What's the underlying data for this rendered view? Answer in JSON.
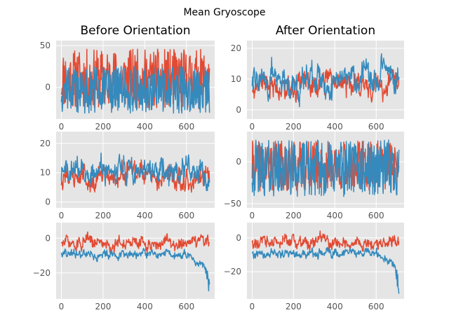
{
  "figure": {
    "suptitle": "Mean Gryoscope",
    "column_titles": [
      "Before Orientation",
      "After Orientation"
    ]
  },
  "colors": {
    "series_red": "#e24a33",
    "series_blue": "#348abd",
    "panel_background": "#e5e5e5",
    "grid": "#ffffff",
    "tick_text": "#555555"
  },
  "chart_data": [
    {
      "type": "line",
      "panel": "row1-left",
      "title": "Before Orientation",
      "x_range": [
        0,
        710
      ],
      "xlim": [
        -25,
        735
      ],
      "ylim": [
        -38,
        56
      ],
      "xticks": [
        0,
        200,
        400,
        600
      ],
      "yticks": [
        0,
        50
      ],
      "grid": true,
      "series": [
        {
          "color": "#e24a33",
          "pattern": "noise",
          "baseline": 10,
          "amp": 36,
          "floor": -30,
          "ceil": 48,
          "seed": 11
        },
        {
          "color": "#348abd",
          "pattern": "noise",
          "baseline": -3,
          "amp": 28,
          "floor": -33,
          "ceil": 52,
          "seed": 12
        }
      ]
    },
    {
      "type": "line",
      "panel": "row1-right",
      "title": "After Orientation",
      "x_range": [
        0,
        710
      ],
      "xlim": [
        -25,
        735
      ],
      "ylim": [
        -3,
        22.5
      ],
      "xticks": [
        0,
        200,
        400,
        600
      ],
      "yticks": [
        0,
        10,
        20
      ],
      "grid": true,
      "series": [
        {
          "color": "#e24a33",
          "pattern": "smooth",
          "baseline": 8.5,
          "amp": 3,
          "floor": 1,
          "ceil": 22,
          "seed": 21
        },
        {
          "color": "#348abd",
          "pattern": "smooth",
          "baseline": 10,
          "amp": 3.5,
          "floor": -2,
          "ceil": 21,
          "seed": 22
        }
      ]
    },
    {
      "type": "line",
      "panel": "row2-left",
      "x_range": [
        0,
        710
      ],
      "xlim": [
        -25,
        735
      ],
      "ylim": [
        -2,
        24
      ],
      "xticks": [
        0,
        200,
        400,
        600
      ],
      "yticks": [
        0,
        10,
        20
      ],
      "grid": true,
      "series": [
        {
          "color": "#e24a33",
          "pattern": "smooth",
          "baseline": 8.5,
          "amp": 3,
          "floor": 1,
          "ceil": 23,
          "seed": 31
        },
        {
          "color": "#348abd",
          "pattern": "smooth",
          "baseline": 10,
          "amp": 3.5,
          "floor": -1,
          "ceil": 21,
          "seed": 32
        }
      ]
    },
    {
      "type": "line",
      "panel": "row2-right",
      "x_range": [
        0,
        710
      ],
      "xlim": [
        -25,
        735
      ],
      "ylim": [
        -55,
        36
      ],
      "xticks": [
        0,
        200,
        400,
        600
      ],
      "yticks": [
        -50,
        0
      ],
      "grid": true,
      "series": [
        {
          "color": "#e24a33",
          "pattern": "noise",
          "baseline": -5,
          "amp": 30,
          "floor": -45,
          "ceil": 28,
          "seed": 41
        },
        {
          "color": "#348abd",
          "pattern": "noise",
          "baseline": -8,
          "amp": 34,
          "floor": -52,
          "ceil": 29,
          "seed": 42
        }
      ]
    },
    {
      "type": "line",
      "panel": "row3-left",
      "x_range": [
        0,
        710
      ],
      "xlim": [
        -25,
        735
      ],
      "ylim": [
        -35,
        9
      ],
      "xticks": [
        0,
        200,
        400,
        600
      ],
      "yticks": [
        -20,
        0
      ],
      "grid": true,
      "series": [
        {
          "color": "#e24a33",
          "pattern": "smooth",
          "baseline": -3,
          "amp": 3,
          "floor": -18,
          "ceil": 8,
          "seed": 51
        },
        {
          "color": "#348abd",
          "pattern": "drift",
          "baseline": -9,
          "amp": 2.5,
          "floor": -34,
          "ceil": 3,
          "seed": 52
        }
      ]
    },
    {
      "type": "line",
      "panel": "row3-right",
      "x_range": [
        0,
        710
      ],
      "xlim": [
        -25,
        735
      ],
      "ylim": [
        -36,
        9
      ],
      "xticks": [
        0,
        200,
        400,
        600
      ],
      "yticks": [
        -20,
        0
      ],
      "grid": true,
      "series": [
        {
          "color": "#e24a33",
          "pattern": "smooth",
          "baseline": -3,
          "amp": 3,
          "floor": -18,
          "ceil": 8,
          "seed": 61
        },
        {
          "color": "#348abd",
          "pattern": "drift",
          "baseline": -9,
          "amp": 2.5,
          "floor": -34,
          "ceil": 3,
          "seed": 62
        }
      ]
    }
  ]
}
